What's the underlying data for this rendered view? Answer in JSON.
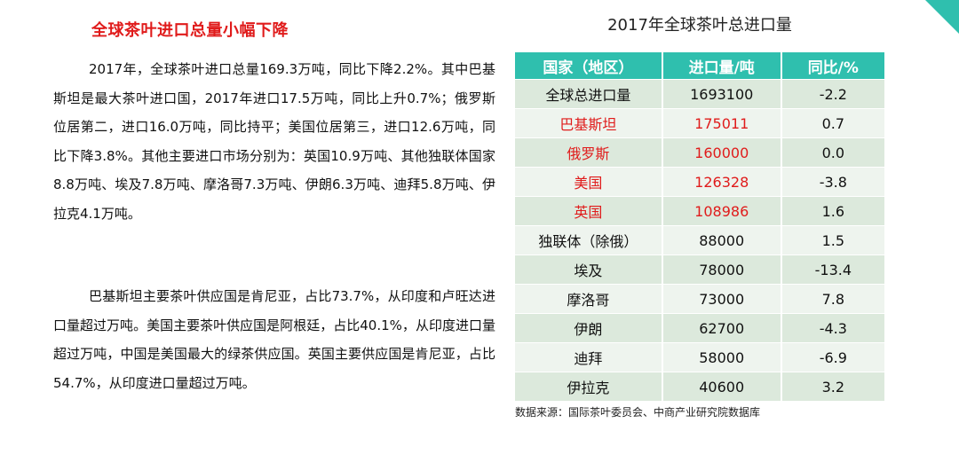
{
  "article": {
    "heading": "全球茶叶进口总量小幅下降",
    "paragraph1": "2017年，全球茶叶进口总量169.3万吨，同比下降2.2%。其中巴基斯坦是最大茶叶进口国，2017年进口17.5万吨，同比上升0.7%；俄罗斯位居第二，进口16.0万吨，同比持平；美国位居第三，进口12.6万吨，同比下降3.8%。其他主要进口市场分别为：英国10.9万吨、其他独联体国家8.8万吨、埃及7.8万吨、摩洛哥7.3万吨、伊朗6.3万吨、迪拜5.8万吨、伊拉克4.1万吨。",
    "paragraph2": "巴基斯坦主要茶叶供应国是肯尼亚，占比73.7%，从印度和卢旺达进口量超过万吨。美国主要茶叶供应国是阿根廷，占比40.1%，从印度进口量超过万吨，中国是美国最大的绿茶供应国。英国主要供应国是肯尼亚，占比54.7%，从印度进口量超过万吨。"
  },
  "table": {
    "title": "2017年全球茶叶总进口量",
    "headers": [
      "国家（地区）",
      "进口量/吨",
      "同比/%"
    ],
    "rows": [
      {
        "country": "全球总进口量",
        "volume": "1693100",
        "yoy": "-2.2",
        "highlight": false
      },
      {
        "country": "巴基斯坦",
        "volume": "175011",
        "yoy": "0.7",
        "highlight": true
      },
      {
        "country": "俄罗斯",
        "volume": "160000",
        "yoy": "0.0",
        "highlight": true
      },
      {
        "country": "美国",
        "volume": "126328",
        "yoy": "-3.8",
        "highlight": true
      },
      {
        "country": "英国",
        "volume": "108986",
        "yoy": "1.6",
        "highlight": true
      },
      {
        "country": "独联体（除俄）",
        "volume": "88000",
        "yoy": "1.5",
        "highlight": false
      },
      {
        "country": "埃及",
        "volume": "78000",
        "yoy": "-13.4",
        "highlight": false
      },
      {
        "country": "摩洛哥",
        "volume": "73000",
        "yoy": "7.8",
        "highlight": false
      },
      {
        "country": "伊朗",
        "volume": "62700",
        "yoy": "-4.3",
        "highlight": false
      },
      {
        "country": "迪拜",
        "volume": "58000",
        "yoy": "-6.9",
        "highlight": false
      },
      {
        "country": "伊拉克",
        "volume": "40600",
        "yoy": "3.2",
        "highlight": false
      }
    ],
    "source": "数据来源：国际茶叶委员会、中商产业研究院数据库"
  },
  "colors": {
    "accent": "#2fbfae",
    "highlight_text": "#e01b1b",
    "row_dark": "#dce9dc",
    "row_light": "#eef4ee"
  }
}
